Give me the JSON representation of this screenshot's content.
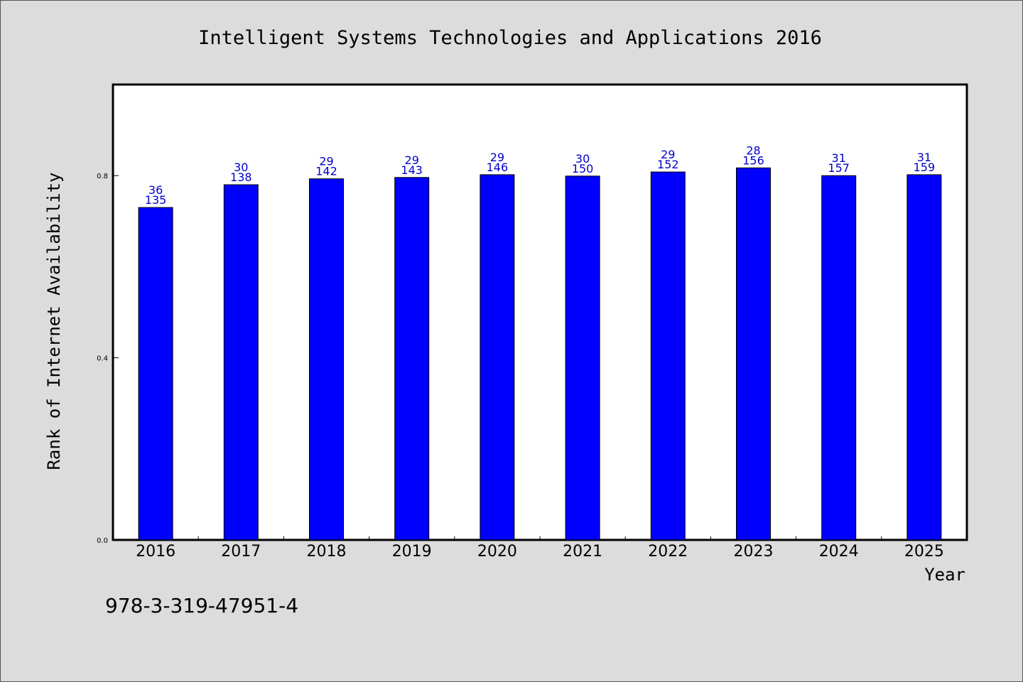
{
  "chart_data": {
    "type": "bar",
    "title": "Intelligent Systems Technologies and Applications 2016",
    "xlabel": "Year",
    "ylabel": "Rank of Internet Availability",
    "ylim": [
      0,
      1.0
    ],
    "yticks": [
      "0.0",
      "0.4",
      "0.8"
    ],
    "categories": [
      "2016",
      "2017",
      "2018",
      "2019",
      "2020",
      "2021",
      "2022",
      "2023",
      "2024",
      "2025"
    ],
    "values": [
      0.73,
      0.78,
      0.793,
      0.796,
      0.802,
      0.799,
      0.808,
      0.817,
      0.8,
      0.802
    ],
    "label_top": [
      "36",
      "30",
      "29",
      "29",
      "29",
      "30",
      "29",
      "28",
      "31",
      "31"
    ],
    "label_bottom": [
      "135",
      "138",
      "142",
      "143",
      "146",
      "150",
      "152",
      "156",
      "157",
      "159"
    ],
    "bar_color": "#0000ff",
    "label_color": "#0000cc",
    "grid": false,
    "legend": "none"
  },
  "footer": {
    "isbn": "978-3-319-47951-4"
  }
}
